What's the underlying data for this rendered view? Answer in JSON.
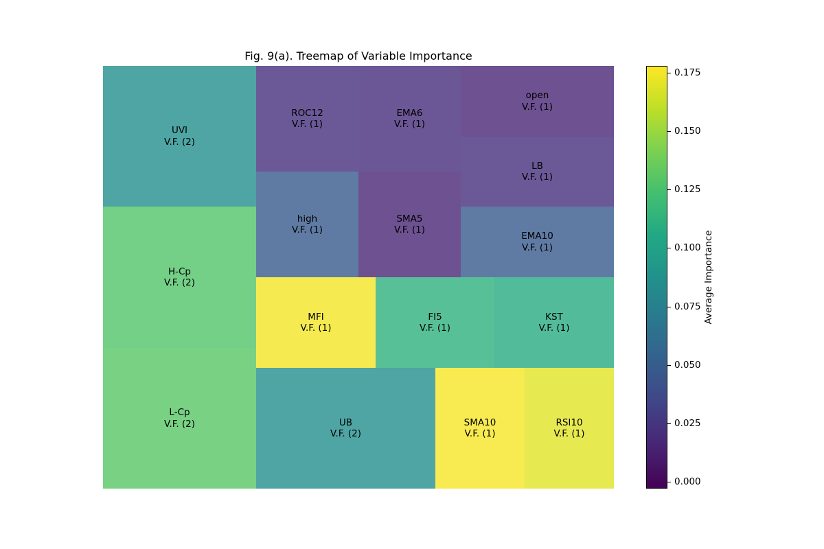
{
  "chart_data": {
    "type": "treemap",
    "title": "Fig. 9(a). Treemap of Variable Importance",
    "colorbar": {
      "label": "Average Importance",
      "min": -0.003,
      "max": 0.178,
      "ticks": [
        "0.000",
        "0.025",
        "0.050",
        "0.075",
        "0.100",
        "0.125",
        "0.150",
        "0.175"
      ],
      "colormap": "viridis"
    },
    "items": [
      {
        "name": "UVI",
        "count_label": "V.F. (2)",
        "frequency": 2,
        "importance": 0.086
      },
      {
        "name": "H-Cp",
        "count_label": "V.F. (2)",
        "frequency": 2,
        "importance": 0.128
      },
      {
        "name": "L-Cp",
        "count_label": "V.F. (2)",
        "frequency": 2,
        "importance": 0.13
      },
      {
        "name": "ROC12",
        "count_label": "V.F. (1)",
        "frequency": 1,
        "importance": 0.022
      },
      {
        "name": "EMA6",
        "count_label": "V.F. (1)",
        "frequency": 1,
        "importance": 0.02
      },
      {
        "name": "open",
        "count_label": "V.F. (1)",
        "frequency": 1,
        "importance": 0.016
      },
      {
        "name": "LB",
        "count_label": "V.F. (1)",
        "frequency": 1,
        "importance": 0.022
      },
      {
        "name": "high",
        "count_label": "V.F. (1)",
        "frequency": 1,
        "importance": 0.048
      },
      {
        "name": "SMA5",
        "count_label": "V.F. (1)",
        "frequency": 1,
        "importance": 0.016
      },
      {
        "name": "EMA10",
        "count_label": "V.F. (1)",
        "frequency": 1,
        "importance": 0.048
      },
      {
        "name": "MFI",
        "count_label": "V.F. (1)",
        "frequency": 1,
        "importance": 0.175
      },
      {
        "name": "FI5",
        "count_label": "V.F. (1)",
        "frequency": 1,
        "importance": 0.112
      },
      {
        "name": "KST",
        "count_label": "V.F. (1)",
        "frequency": 1,
        "importance": 0.108
      },
      {
        "name": "UB",
        "count_label": "V.F. (2)",
        "frequency": 2,
        "importance": 0.086
      },
      {
        "name": "SMA10",
        "count_label": "V.F. (1)",
        "frequency": 1,
        "importance": 0.176
      },
      {
        "name": "RSI10",
        "count_label": "V.F. (1)",
        "frequency": 1,
        "importance": 0.17
      }
    ]
  }
}
